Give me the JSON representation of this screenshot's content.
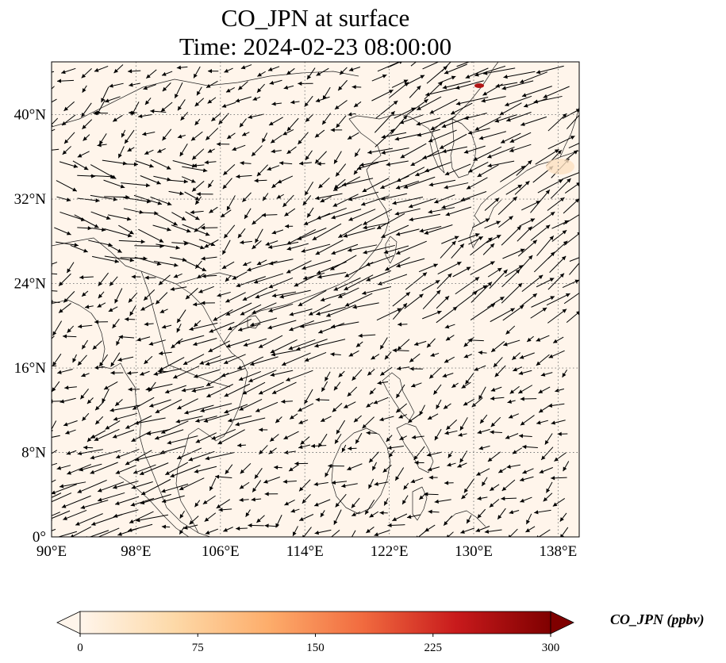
{
  "title_line1": "CO_JPN at surface",
  "title_line2": "Time: 2024-02-23 08:00:00",
  "map": {
    "lon_range": [
      90,
      140
    ],
    "lat_range": [
      0,
      45
    ],
    "lon_ticks": [
      {
        "value": 90,
        "label": "90°E"
      },
      {
        "value": 98,
        "label": "98°E"
      },
      {
        "value": 106,
        "label": "106°E"
      },
      {
        "value": 114,
        "label": "114°E"
      },
      {
        "value": 122,
        "label": "122°E"
      },
      {
        "value": 130,
        "label": "130°E"
      },
      {
        "value": 138,
        "label": "138°E"
      }
    ],
    "lat_ticks": [
      {
        "value": 0,
        "label": "0°"
      },
      {
        "value": 8,
        "label": "8°N"
      },
      {
        "value": 16,
        "label": "16°N"
      },
      {
        "value": 24,
        "label": "24°N"
      },
      {
        "value": 32,
        "label": "32°N"
      },
      {
        "value": 40,
        "label": "40°N"
      }
    ],
    "background_color": "#fff5eb",
    "gridline_style": "dotted",
    "overlay": "wind-vectors"
  },
  "colorbar": {
    "min": 0,
    "max": 300,
    "ticks": [
      {
        "value": 0,
        "label": "0"
      },
      {
        "value": 75,
        "label": "75"
      },
      {
        "value": 150,
        "label": "150"
      },
      {
        "value": 225,
        "label": "225"
      },
      {
        "value": 300,
        "label": "300"
      }
    ],
    "units_label": "CO_JPN (ppbv)",
    "colormap": "OrRd",
    "stops": [
      "#fff5eb",
      "#fdd9a8",
      "#fdad6b",
      "#f16b3f",
      "#c81a1c",
      "#7f0000"
    ],
    "extend": "both"
  }
}
